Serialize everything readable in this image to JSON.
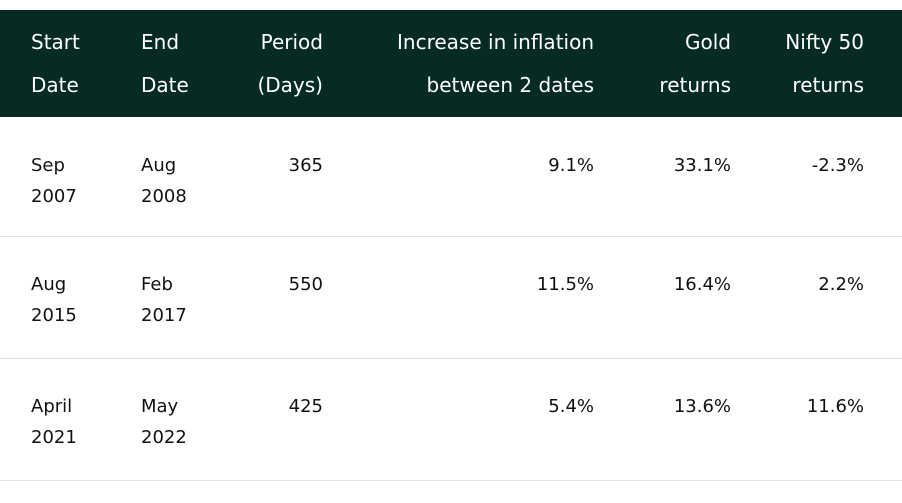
{
  "table": {
    "headers": [
      {
        "line1": "Start",
        "line2": "Date"
      },
      {
        "line1": "End",
        "line2": "Date"
      },
      {
        "line1": "Period",
        "line2": "(Days)"
      },
      {
        "line1": "Increase in inflation",
        "line2": "between 2 dates"
      },
      {
        "line1": "Gold",
        "line2": "returns"
      },
      {
        "line1": "Nifty 50",
        "line2": "returns"
      }
    ],
    "rows": [
      {
        "start_month": "Sep",
        "start_year": "2007",
        "end_month": "Aug",
        "end_year": "2008",
        "period": "365",
        "inflation": "9.1%",
        "gold": "33.1%",
        "nifty": "-2.3%"
      },
      {
        "start_month": "Aug",
        "start_year": "2015",
        "end_month": "Feb",
        "end_year": "2017",
        "period": "550",
        "inflation": "11.5%",
        "gold": "16.4%",
        "nifty": "2.2%"
      },
      {
        "start_month": "April",
        "start_year": "2021",
        "end_month": "May",
        "end_year": "2022",
        "period": "425",
        "inflation": "5.4%",
        "gold": "13.6%",
        "nifty": "11.6%"
      }
    ]
  },
  "colors": {
    "header_bg": "#062b22",
    "header_text": "#ffffff",
    "body_text": "#111111",
    "row_divider": "#e3e3e3"
  }
}
